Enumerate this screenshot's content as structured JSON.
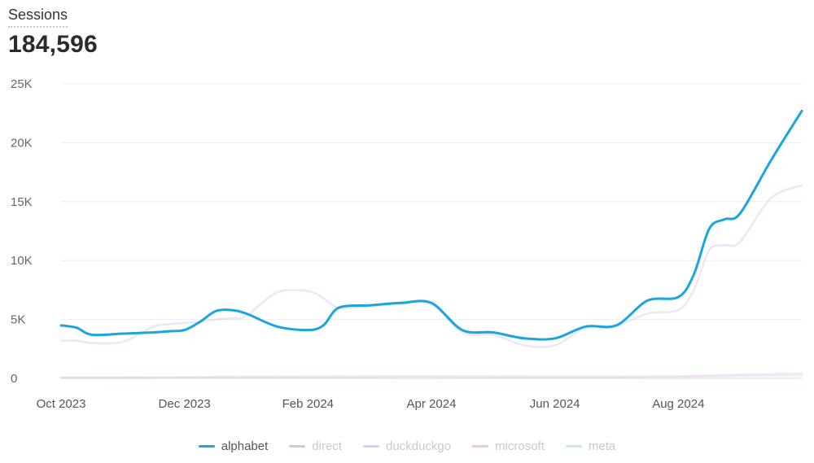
{
  "header": {
    "metric_label": "Sessions",
    "metric_value": "184,596"
  },
  "chart_data": {
    "type": "line",
    "title": "Sessions",
    "total": 184596,
    "xlabel": "",
    "ylabel": "",
    "ylim": [
      0,
      25000
    ],
    "grid": true,
    "legend_position": "bottom",
    "y_ticks": [
      "0",
      "5K",
      "10K",
      "15K",
      "20K",
      "25K"
    ],
    "x_ticks": [
      "Oct 2023",
      "Dec 2023",
      "Feb 2024",
      "Apr 2024",
      "Jun 2024",
      "Aug 2024"
    ],
    "x_points": [
      0,
      0.25,
      0.5,
      1,
      1.5,
      1.75,
      2,
      2.25,
      2.5,
      2.75,
      3,
      3.5,
      4,
      4.25,
      4.5,
      5,
      5.5,
      6,
      6.5,
      7,
      7.5,
      8,
      8.5,
      9,
      9.5,
      10,
      10.25,
      10.5,
      10.75,
      11,
      11.5,
      12
    ],
    "series": [
      {
        "name": "alphabet",
        "color": "#1ba5dd",
        "active": true,
        "values": [
          4500,
          4300,
          3700,
          3800,
          3900,
          4000,
          4100,
          4800,
          5700,
          5800,
          5500,
          4400,
          4100,
          4500,
          6000,
          6200,
          6400,
          6400,
          4100,
          3900,
          3400,
          3400,
          4400,
          4500,
          6600,
          6900,
          8800,
          12700,
          13500,
          14000,
          18500,
          22700
        ]
      },
      {
        "name": "direct",
        "color": "#c8b9ec",
        "active": false,
        "values": [
          3200,
          3200,
          3000,
          3100,
          4400,
          4600,
          4700,
          4800,
          5000,
          5100,
          5300,
          7300,
          7400,
          6800,
          6000,
          6100,
          6300,
          6300,
          3900,
          3700,
          2800,
          2800,
          4300,
          4500,
          5500,
          5800,
          7500,
          10900,
          11300,
          11600,
          15300,
          16400
        ]
      },
      {
        "name": "duckduckgo",
        "color": "#c5cdf0",
        "active": false,
        "values": [
          50,
          50,
          50,
          60,
          60,
          60,
          70,
          70,
          80,
          80,
          80,
          90,
          90,
          90,
          100,
          100,
          110,
          110,
          100,
          100,
          100,
          100,
          100,
          100,
          110,
          120,
          150,
          180,
          200,
          220,
          250,
          300
        ]
      },
      {
        "name": "microsoft",
        "color": "#f3bfd6",
        "active": false,
        "values": [
          80,
          80,
          90,
          100,
          110,
          110,
          120,
          130,
          130,
          140,
          140,
          150,
          150,
          160,
          170,
          180,
          190,
          200,
          190,
          180,
          170,
          160,
          160,
          160,
          170,
          180,
          220,
          260,
          300,
          330,
          380,
          430
        ]
      },
      {
        "name": "meta",
        "color": "#bfe6df",
        "active": false,
        "values": [
          20,
          20,
          20,
          20,
          20,
          20,
          20,
          20,
          20,
          20,
          20,
          20,
          20,
          20,
          20,
          20,
          20,
          20,
          20,
          20,
          20,
          20,
          20,
          20,
          20,
          20,
          20,
          20,
          30,
          30,
          30,
          40
        ]
      }
    ]
  },
  "legend": {
    "items": [
      {
        "label": "alphabet",
        "color": "#1ba5dd",
        "text_color": "#555555"
      },
      {
        "label": "direct",
        "color": "#cfc3ef",
        "text_color": "#c9c9c9"
      },
      {
        "label": "duckduckgo",
        "color": "#ccd3f2",
        "text_color": "#c9c9c9"
      },
      {
        "label": "microsoft",
        "color": "#f4c6da",
        "text_color": "#c9c9c9"
      },
      {
        "label": "meta",
        "color": "#c6ebe4",
        "text_color": "#c9c9c9"
      }
    ]
  }
}
